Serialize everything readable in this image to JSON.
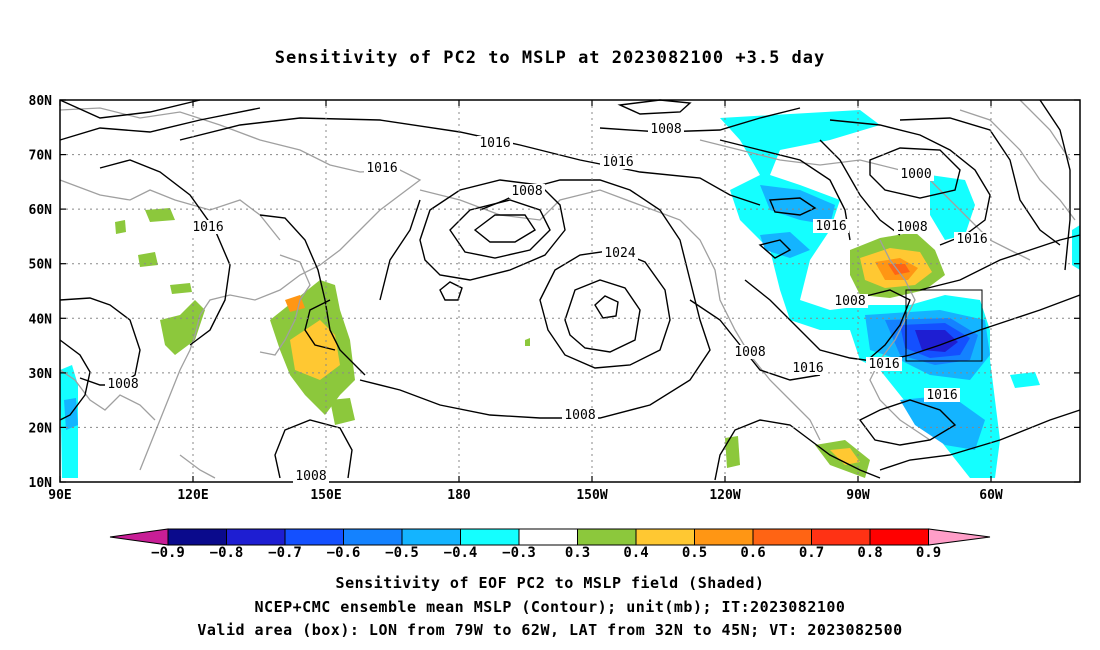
{
  "title": "Sensitivity of PC2 to MSLP at 2023082100 +3.5 day",
  "map": {
    "lon_labels": [
      "90E",
      "120E",
      "150E",
      "180",
      "150W",
      "120W",
      "90W",
      "60W"
    ],
    "lat_labels": [
      "80N",
      "70N",
      "60N",
      "50N",
      "40N",
      "30N",
      "20N",
      "10N"
    ],
    "contour_labels": [
      "1008",
      "1016",
      "1016",
      "1016",
      "1008",
      "1024",
      "1016",
      "1000",
      "1008",
      "1016",
      "1016",
      "1008",
      "1008",
      "1016",
      "1016",
      "1008",
      "1008",
      "1016",
      "1008"
    ],
    "valid_box": {
      "lon_min": -79,
      "lon_max": -62,
      "lat_min": 32,
      "lat_max": 45
    }
  },
  "colorbar": {
    "labels": [
      "-0.9",
      "-0.8",
      "-0.7",
      "-0.6",
      "-0.5",
      "-0.4",
      "-0.3",
      "0.3",
      "0.4",
      "0.5",
      "0.6",
      "0.7",
      "0.8",
      "0.9"
    ],
    "colors": [
      "#0a0a8c",
      "#1e1ed2",
      "#1450ff",
      "#1482ff",
      "#14b4ff",
      "#14ffff",
      "#ffffff",
      "#8cc83c",
      "#ffc832",
      "#ff9614",
      "#ff6414",
      "#ff3214",
      "#ff0000"
    ],
    "low_end_color": "#c81e96",
    "high_end_color": "#ff9ec8"
  },
  "footer": {
    "line1": "Sensitivity of EOF PC2 to MSLP field (Shaded)",
    "line2": "NCEP+CMC ensemble mean MSLP (Contour); unit(mb); IT:2023082100",
    "line3": "Valid area (box): LON from 79W to 62W, LAT from 32N to 45N; VT: 2023082500"
  }
}
